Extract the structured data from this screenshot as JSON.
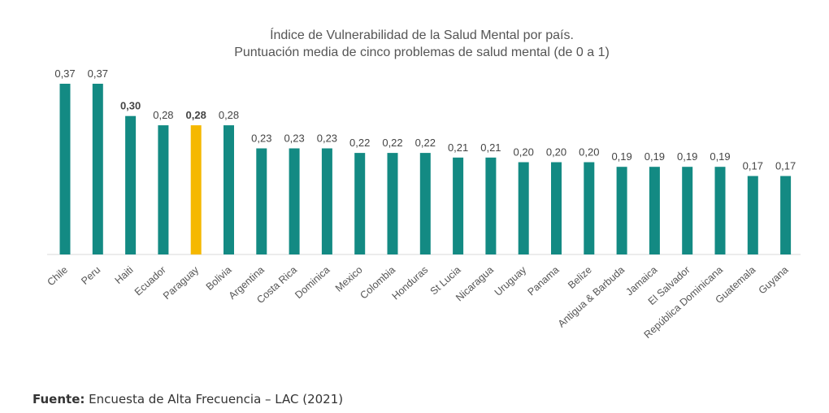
{
  "chart_data": {
    "type": "bar",
    "title": "Índice de Vulnerabilidad de la Salud Mental por país.",
    "subtitle": "Puntuación media de cinco problemas de salud mental (de 0 a 1)",
    "categories": [
      "Chile",
      "Peru",
      "Haiti",
      "Ecuador",
      "Paraguay",
      "Bolivia",
      "Argentina",
      "Costa Rica",
      "Dominica",
      "Mexico",
      "Colombia",
      "Honduras",
      "St Lucia",
      "Nicaragua",
      "Uruguay",
      "Panama",
      "Belize",
      "Antigua & Barbuda",
      "Jamaica",
      "El Salvador",
      "República Dominicana",
      "Guatemala",
      "Guyana"
    ],
    "values": [
      0.37,
      0.37,
      0.3,
      0.28,
      0.28,
      0.28,
      0.23,
      0.23,
      0.23,
      0.22,
      0.22,
      0.22,
      0.21,
      0.21,
      0.2,
      0.2,
      0.2,
      0.19,
      0.19,
      0.19,
      0.19,
      0.17,
      0.17
    ],
    "value_labels": [
      "0,37",
      "0,37",
      "0,30",
      "0,28",
      "0,28",
      "0,28",
      "0,23",
      "0,23",
      "0,23",
      "0,22",
      "0,22",
      "0,22",
      "0,21",
      "0,21",
      "0,20",
      "0,20",
      "0,20",
      "0,19",
      "0,19",
      "0,19",
      "0,19",
      "0,17",
      "0,17"
    ],
    "highlight_index": 4,
    "bold_index": 2,
    "ylim": [
      0,
      0.4
    ],
    "grid": false,
    "colors": {
      "bar": "#138a83",
      "highlight": "#f5b800",
      "highlight_label": "#e59a1c"
    }
  },
  "source": {
    "label": "Fuente:",
    "text": "Encuesta de Alta Frecuencia – LAC (2021)"
  }
}
